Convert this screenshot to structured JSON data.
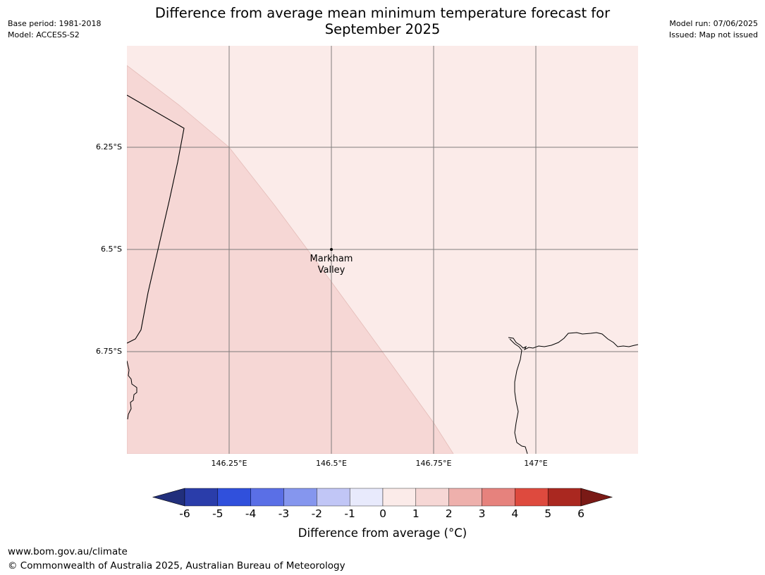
{
  "title_line1": "Difference from average mean minimum temperature forecast for",
  "title_line2": "September 2025",
  "meta_left": {
    "base_period": "Base period: 1981-2018",
    "model": "Model: ACCESS-S2"
  },
  "meta_right": {
    "model_run": "Model run: 07/06/2025",
    "issued": "Issued: Map not issued"
  },
  "map": {
    "lat_labels": [
      "6.25°S",
      "6.5°S",
      "6.75°S"
    ],
    "lon_labels": [
      "146.25°E",
      "146.5°E",
      "146.75°E",
      "147°E"
    ],
    "place": {
      "name_line1": "Markham",
      "name_line2": "Valley",
      "lon": 146.5,
      "lat": -6.5
    },
    "regions": [
      {
        "category": "1 to 2",
        "color": "#f6d7d5"
      },
      {
        "category": "0 to 1",
        "color": "#fbebe9"
      }
    ]
  },
  "colorbar": {
    "label": "Difference from average (°C)",
    "label_prefix": "Difference from average (",
    "label_unit": "°C)",
    "ticks": [
      "-6",
      "-5",
      "-4",
      "-3",
      "-2",
      "-1",
      "0",
      "1",
      "2",
      "3",
      "4",
      "5",
      "6"
    ],
    "under_color": "#212f7c",
    "over_color": "#7a1a16",
    "colors": [
      "#2a3daa",
      "#3050dc",
      "#5a6fe6",
      "#8596ee",
      "#c1c6f6",
      "#e8eafc",
      "#fbebe9",
      "#f6d7d5",
      "#eeb0ac",
      "#e6827d",
      "#de4a3e",
      "#aa2820"
    ]
  },
  "footer": {
    "url": "www.bom.gov.au/climate",
    "copyright": "© Commonwealth of Australia 2025, Australian Bureau of Meteorology"
  }
}
